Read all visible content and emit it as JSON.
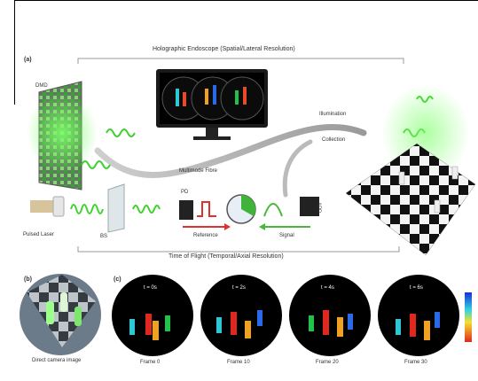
{
  "panel_a": {
    "label": "(a)",
    "top_caption": "Holographic Endoscope (Spatial/Lateral Resolution)",
    "bottom_caption": "Time of Flight (Temporal/Axial Resolution)",
    "dmd": "DMD",
    "illumination": "Illumination",
    "collection": "Collection",
    "fibre": "Multimode Fibre",
    "pd": "PD",
    "apd": "APD",
    "laser": "Pulsed Laser",
    "bs": "BS",
    "reference": "Reference",
    "signal": "Signal"
  },
  "panel_b": {
    "label": "(b)",
    "caption": "Direct camera image"
  },
  "panel_c": {
    "label": "(c)",
    "frames": [
      {
        "time": "t = 0s",
        "caption": "Frame 0"
      },
      {
        "time": "t = 2s",
        "caption": "Frame 10"
      },
      {
        "time": "t = 4s",
        "caption": "Frame 20"
      },
      {
        "time": "t = 6s",
        "caption": "Frame 30"
      }
    ]
  },
  "colors": {
    "laser_green": "#3fd12e",
    "reference_red": "#e0322c",
    "signal_green": "#49b83a"
  }
}
